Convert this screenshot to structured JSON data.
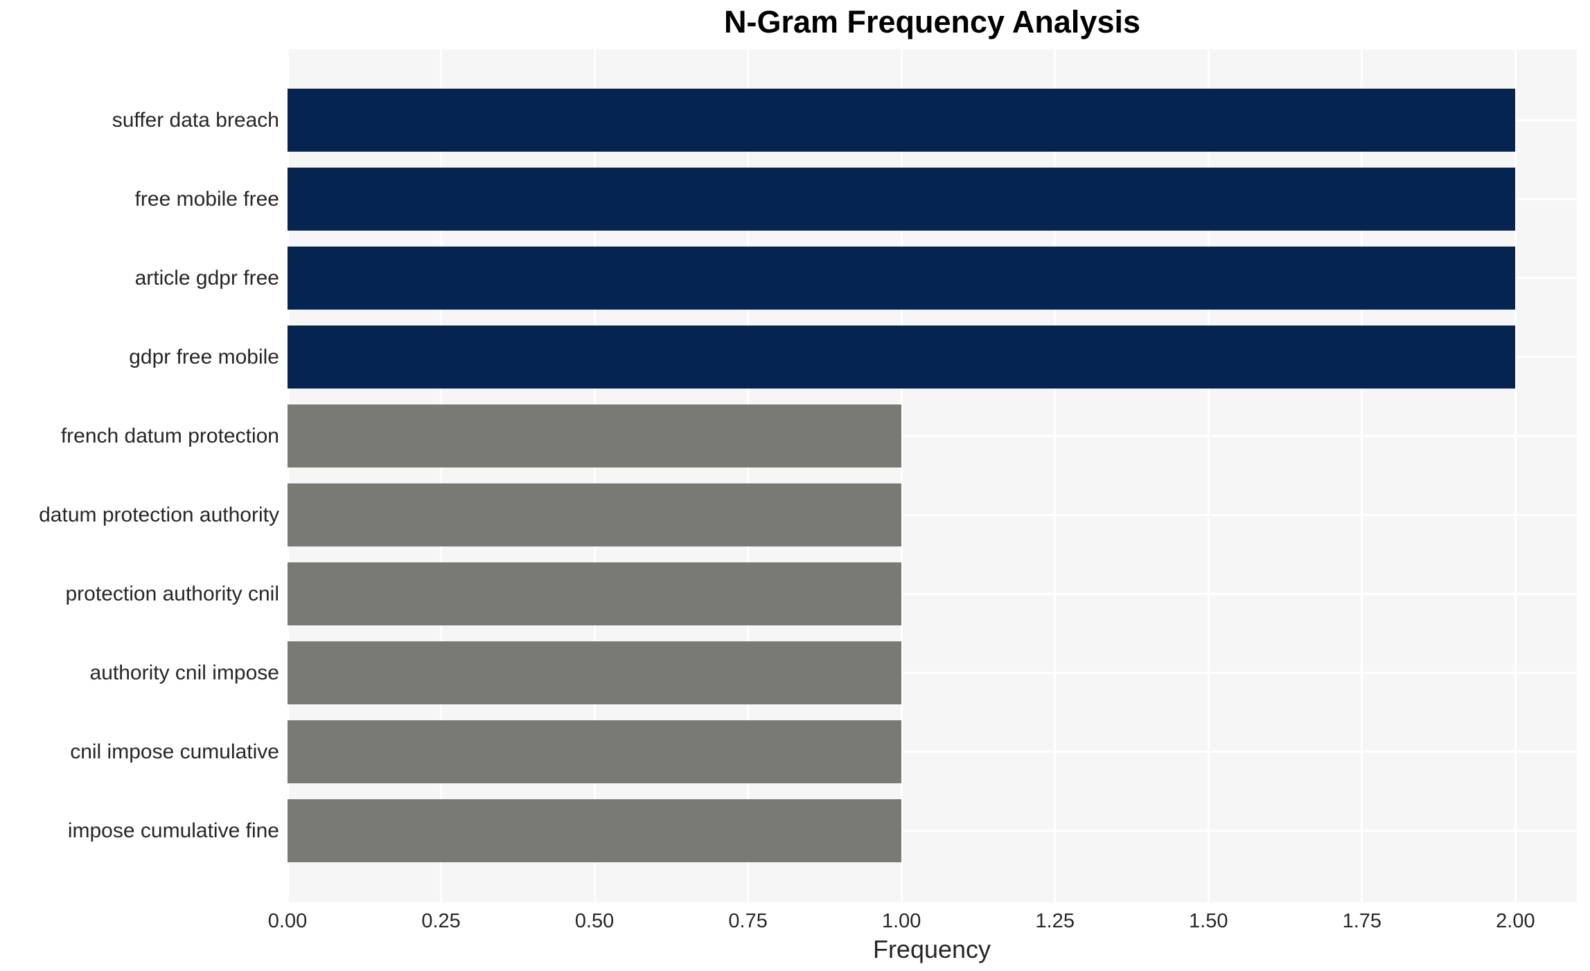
{
  "chart_data": {
    "type": "bar",
    "orientation": "horizontal",
    "title": "N-Gram Frequency Analysis",
    "xlabel": "Frequency",
    "ylabel": "",
    "categories": [
      "suffer data breach",
      "free mobile free",
      "article gdpr free",
      "gdpr free mobile",
      "french datum protection",
      "datum protection authority",
      "protection authority cnil",
      "authority cnil impose",
      "cnil impose cumulative",
      "impose cumulative fine"
    ],
    "values": [
      2,
      2,
      2,
      2,
      1,
      1,
      1,
      1,
      1,
      1
    ],
    "bar_colors": [
      "#05244f",
      "#05244f",
      "#05244f",
      "#05244f",
      "#7a7a74",
      "#7a7a74",
      "#7a7a74",
      "#7a7a74",
      "#7a7a74",
      "#7a7a74"
    ],
    "xlim": [
      0,
      2.1
    ],
    "xtick_values": [
      0,
      0.25,
      0.5,
      0.75,
      1,
      1.25,
      1.5,
      1.75,
      2
    ],
    "xtick_labels": [
      "0.00",
      "0.25",
      "0.50",
      "0.75",
      "1.00",
      "1.25",
      "1.50",
      "1.75",
      "2.00"
    ],
    "grid": true,
    "legend": false,
    "colors": {
      "bar_high": "#05244f",
      "bar_low": "#7a7a74",
      "plot_background": "#f6f6f6",
      "gridline": "#ffffff",
      "tick_text": "#262626",
      "title_text": "#000000"
    }
  }
}
